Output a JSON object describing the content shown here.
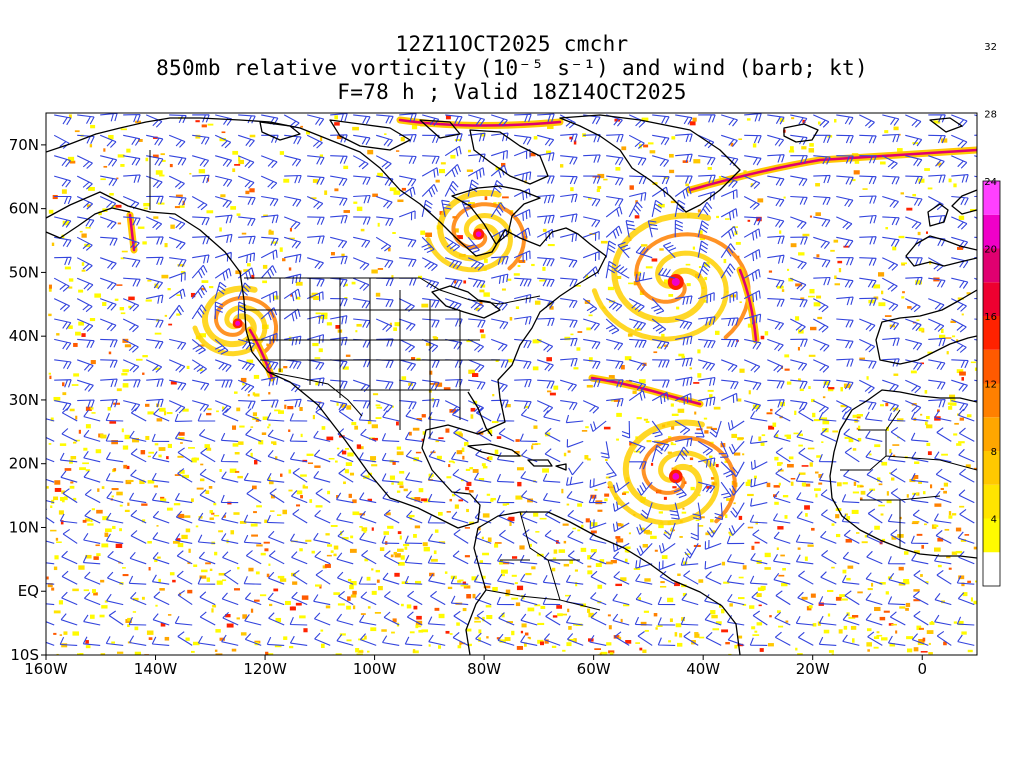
{
  "title": {
    "line1": "12Z11OCT2025 cmchr",
    "line2": "850mb relative vorticity (10⁻⁵ s⁻¹) and wind (barb; kt)",
    "line3": "F=78 h ; Valid 18Z14OCT2025"
  },
  "map": {
    "lon_range": [
      -160,
      10
    ],
    "lat_range": [
      -10,
      75
    ],
    "x_tick_labels": [
      {
        "lon": -160,
        "label": "160W"
      },
      {
        "lon": -140,
        "label": "140W"
      },
      {
        "lon": -120,
        "label": "120W"
      },
      {
        "lon": -100,
        "label": "100W"
      },
      {
        "lon": -80,
        "label": "80W"
      },
      {
        "lon": -60,
        "label": "60W"
      },
      {
        "lon": -40,
        "label": "40W"
      },
      {
        "lon": -20,
        "label": "20W"
      },
      {
        "lon": 0,
        "label": "0"
      }
    ],
    "y_tick_labels": [
      {
        "lat": 70,
        "label": "70N"
      },
      {
        "lat": 60,
        "label": "60N"
      },
      {
        "lat": 50,
        "label": "50N"
      },
      {
        "lat": 40,
        "label": "40N"
      },
      {
        "lat": 30,
        "label": "30N"
      },
      {
        "lat": 20,
        "label": "20N"
      },
      {
        "lat": 10,
        "label": "10N"
      },
      {
        "lat": 0,
        "label": "EQ"
      },
      {
        "lat": -10,
        "label": "10S"
      }
    ],
    "coastline_color": "#000000",
    "barb_color": "#3344dd",
    "vortices": [
      {
        "name": "North Atlantic low",
        "lon": -45,
        "lat": 48.5,
        "strength": 1.0
      },
      {
        "name": "Tropical cyclone",
        "lon": -45,
        "lat": 18,
        "strength": 0.8
      },
      {
        "name": "Hudson Bay low",
        "lon": -81,
        "lat": 56,
        "strength": 0.6
      },
      {
        "name": "Pacific low",
        "lon": -125,
        "lat": 42,
        "strength": 0.5
      }
    ]
  },
  "colorbar": {
    "labels": [
      "4",
      "8",
      "12",
      "16",
      "20",
      "24",
      "28",
      "32"
    ],
    "colors": [
      "#ffffff",
      "#fffb00",
      "#ffe400",
      "#ffc800",
      "#ffa600",
      "#ff8000",
      "#ff5a00",
      "#ff2200",
      "#ee0030",
      "#e00070",
      "#f000c8",
      "#ff40ff"
    ]
  }
}
